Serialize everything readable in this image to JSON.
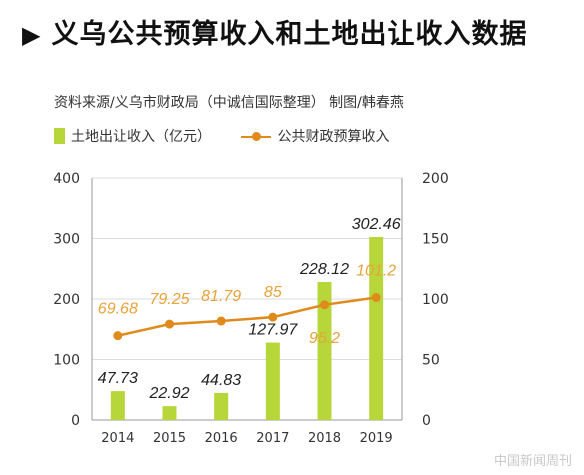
{
  "title": "义乌公共预算收入和土地出让收入数据",
  "title_marker": "▶",
  "source": "资料来源/义乌市财政局（中诚信国际整理）  制图/韩春燕",
  "watermark": "中国新闻周刊",
  "colors": {
    "bar": "#B7D63A",
    "line": "#E08A1C",
    "bar_label": "#222222",
    "line_label": "#E8A33A",
    "grid": "#dddddd"
  },
  "chart_data": {
    "type": "bar",
    "categories": [
      "2014",
      "2015",
      "2016",
      "2017",
      "2018",
      "2019"
    ],
    "series": [
      {
        "name": "土地出让收入（亿元）",
        "type": "bar",
        "axis": "left",
        "values": [
          47.73,
          22.92,
          44.83,
          127.97,
          228.12,
          302.46
        ],
        "labels": [
          "47.73",
          "22.92",
          "44.83",
          "127.97",
          "228.12",
          "302.46"
        ]
      },
      {
        "name": "公共财政预算收入",
        "type": "line",
        "axis": "right",
        "values": [
          69.68,
          79.25,
          81.79,
          85,
          95.2,
          101.2
        ],
        "labels": [
          "69.68",
          "79.25",
          "81.79",
          "85",
          "95.2",
          "101.2"
        ]
      }
    ],
    "ylim_left": [
      0,
      400
    ],
    "yticks_left": [
      "0",
      "100",
      "200",
      "300",
      "400"
    ],
    "ylim_right": [
      0,
      200
    ],
    "yticks_right": [
      "0",
      "50",
      "100",
      "150",
      "200"
    ],
    "grid": true,
    "legend": "top-left"
  }
}
